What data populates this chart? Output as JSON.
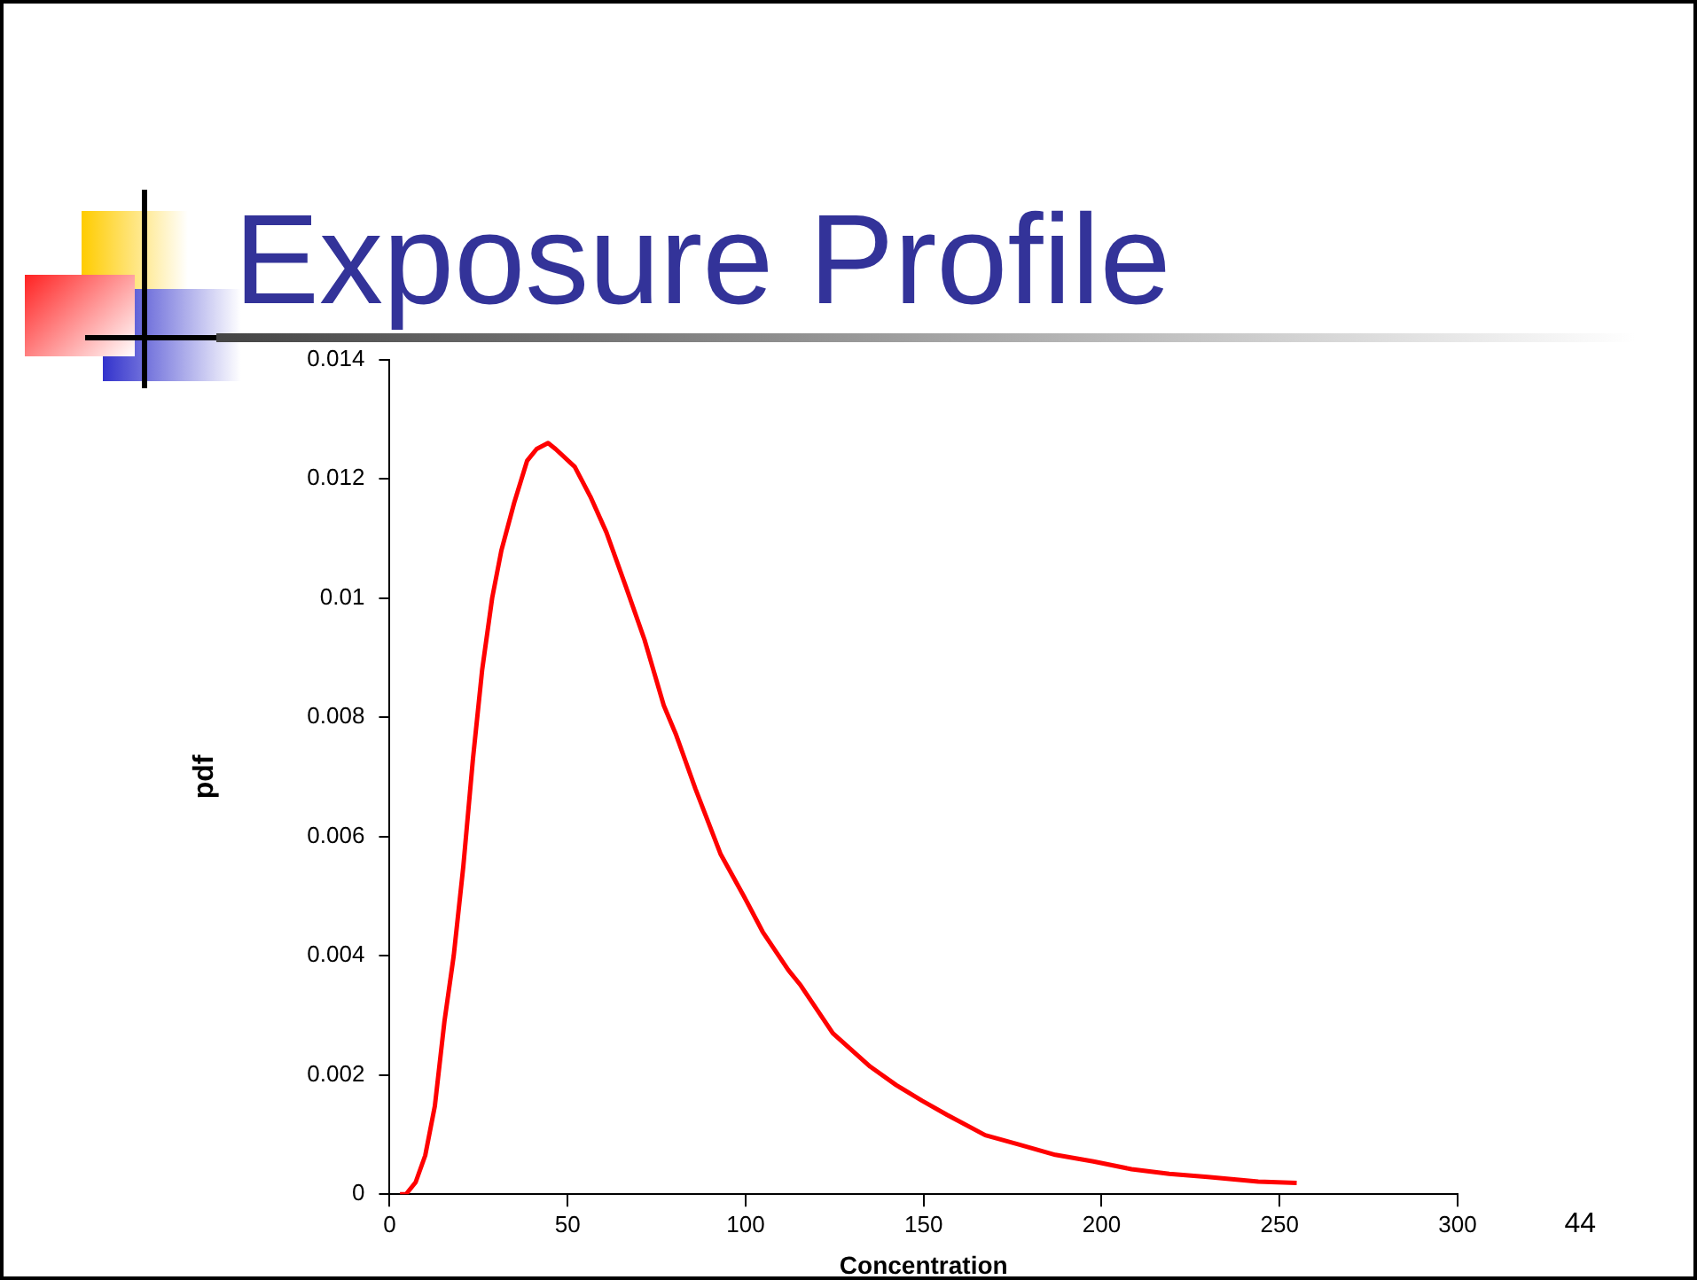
{
  "chart_data": {
    "type": "line",
    "title": "Exposure Profile",
    "xlabel": "Concentration",
    "ylabel": "pdf",
    "annotations": [
      "44"
    ],
    "series": [
      {
        "color": "#ff0000",
        "x": [
          2.9,
          4.6,
          7.3,
          10,
          12.7,
          15.4,
          18,
          20.7,
          23.4,
          26,
          28.8,
          31.4,
          35,
          38.6,
          41.3,
          44.5,
          46.6,
          52,
          56.4,
          60.9,
          66.3,
          71.6,
          77,
          80.5,
          85.9,
          93,
          99.5,
          104.8,
          112,
          115.5,
          124.5,
          135,
          142.3,
          149.5,
          156.6,
          167.3,
          176.3,
          187,
          197.7,
          208.4,
          219,
          229.8,
          244,
          254.8
        ],
        "values": [
          0,
          0,
          0.0002,
          0.00065,
          0.00148,
          0.0029,
          0.004,
          0.0055,
          0.0073,
          0.0088,
          0.01,
          0.0108,
          0.0116,
          0.0123,
          0.0125,
          0.0126,
          0.0125,
          0.0122,
          0.0117,
          0.0111,
          0.0102,
          0.0093,
          0.0082,
          0.0077,
          0.0068,
          0.0057,
          0.005,
          0.0044,
          0.00376,
          0.0035,
          0.0027,
          0.00214,
          0.00183,
          0.00157,
          0.00133,
          0.00099,
          0.00084,
          0.00066,
          0.00055,
          0.00042,
          0.00034,
          0.00029,
          0.00021,
          0.00019
        ]
      }
    ],
    "xlim": [
      0,
      300
    ],
    "xticks": [
      0,
      50,
      100,
      150,
      200,
      250,
      300
    ],
    "ylim": [
      0,
      0.014
    ],
    "yticks": [
      0,
      0.002,
      0.004,
      0.006,
      0.008,
      0.01,
      0.012,
      0.014
    ],
    "grid": false,
    "legend": false,
    "marker": "none",
    "line_style": "solid"
  }
}
